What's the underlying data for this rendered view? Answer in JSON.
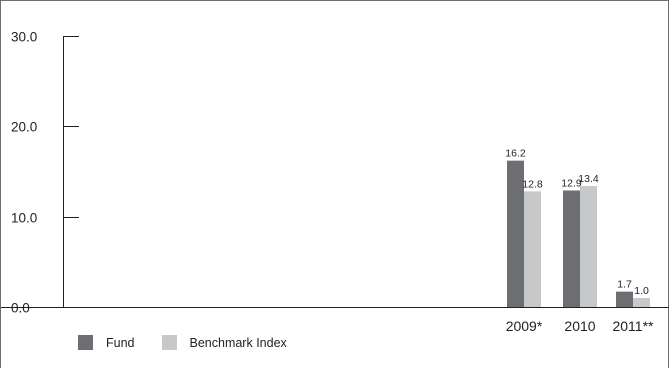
{
  "chart_data": {
    "type": "bar",
    "categories": [
      "2009*",
      "2010",
      "2011**"
    ],
    "series": [
      {
        "name": "Fund",
        "values": [
          16.2,
          12.9,
          1.7
        ],
        "labels": [
          "16.2",
          "12.9",
          "1.7"
        ],
        "color": "#6d6e71"
      },
      {
        "name": "Benchmark Index",
        "values": [
          12.8,
          13.4,
          1.0
        ],
        "labels": [
          "12.8",
          "13.4",
          "1.0"
        ],
        "color": "#c7c8ca"
      }
    ],
    "ylim": [
      0,
      30
    ],
    "yticks": [
      "0.0",
      "10.0",
      "20.0",
      "30.0"
    ],
    "grid": false,
    "legend_position": "bottom-left"
  }
}
